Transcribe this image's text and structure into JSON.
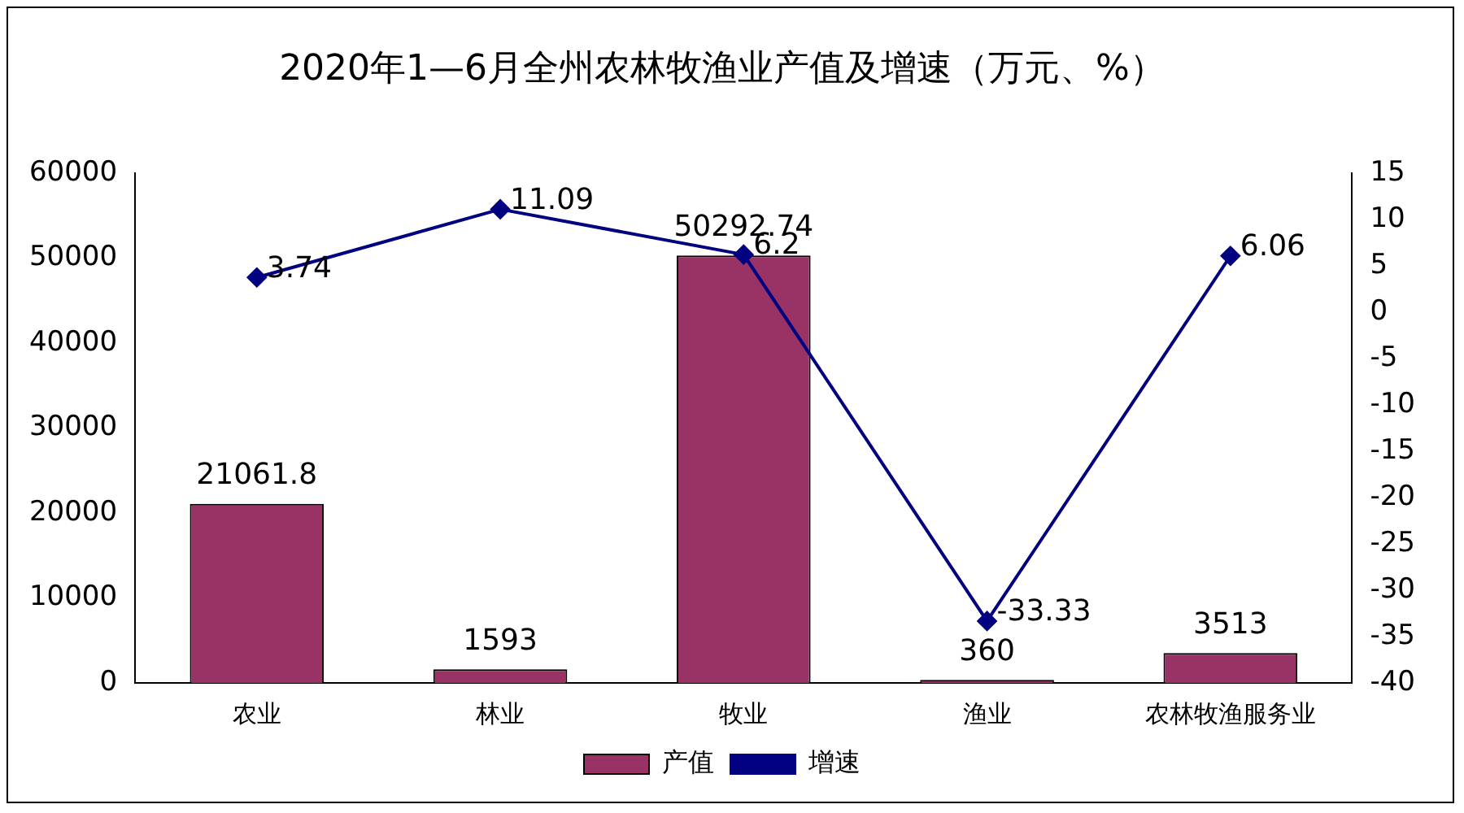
{
  "chart_data": {
    "type": "bar",
    "title": "2020年1—6月全州农林牧渔业产值及增速（万元、%）",
    "categories": [
      "农业",
      "林业",
      "牧业",
      "渔业",
      "农林牧渔服务业"
    ],
    "series": [
      {
        "name": "产值",
        "color": "#993366",
        "values": [
          21061.8,
          1593,
          50292.74,
          360,
          3513
        ]
      },
      {
        "name": "增速",
        "type": "line",
        "axis": "y2",
        "color": "#000080",
        "values": [
          3.74,
          11.09,
          6.2,
          -33.33,
          6.06
        ],
        "marker": "diamond"
      }
    ],
    "ylim": [
      0,
      60000
    ],
    "yticks": [
      0,
      10000,
      20000,
      30000,
      40000,
      50000,
      60000
    ],
    "y2lim": [
      -40,
      15
    ],
    "y2ticks": [
      -40,
      -35,
      -30,
      -25,
      -20,
      -15,
      -10,
      -5,
      0,
      5,
      10,
      15
    ],
    "data_labels": true,
    "legend": "bottom",
    "grid": false
  }
}
